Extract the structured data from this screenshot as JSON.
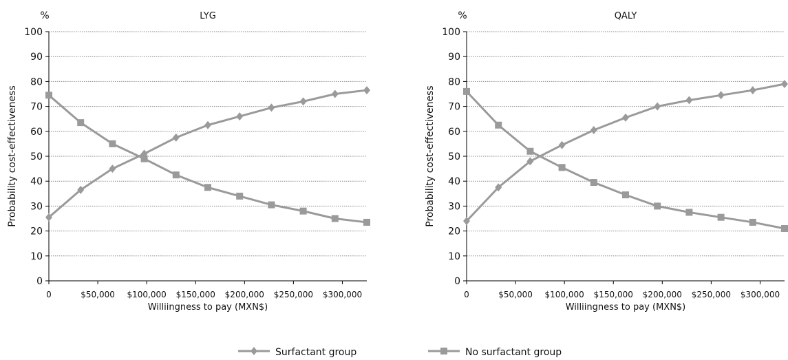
{
  "legend": {
    "items": [
      {
        "label": "Surfactant group",
        "marker": "diamond"
      },
      {
        "label": "No surfactant group",
        "marker": "square"
      }
    ]
  },
  "colors": {
    "series": "#9a9a9a",
    "grid": "#888888",
    "axis": "#000000"
  },
  "chart_data": [
    {
      "type": "line",
      "title": "LYG",
      "unit_label": "%",
      "xlabel": "Williingness to pay (MXN$)",
      "ylabel": "Probability cost-effectiveness",
      "ylim": [
        0,
        100
      ],
      "yticks": [
        0,
        10,
        20,
        30,
        40,
        50,
        60,
        70,
        80,
        90,
        100
      ],
      "xlim": [
        0,
        325000
      ],
      "xticks": [
        0,
        50000,
        100000,
        150000,
        200000,
        250000,
        300000
      ],
      "xtick_labels": [
        "0",
        "$50,000",
        "$100,000",
        "$150,000",
        "$200,000",
        "$250,000",
        "$300,000"
      ],
      "x": [
        0,
        32500,
        65000,
        97500,
        130000,
        162500,
        195000,
        227500,
        260000,
        292500,
        325000
      ],
      "grid": "horizontal dotted",
      "series": [
        {
          "name": "Surfactant group",
          "marker": "diamond",
          "values": [
            25.5,
            36.5,
            45,
            51,
            57.5,
            62.5,
            66,
            69.5,
            72,
            75,
            76.5
          ]
        },
        {
          "name": "No surfactant group",
          "marker": "square",
          "values": [
            74.5,
            63.5,
            55,
            49,
            42.5,
            37.5,
            34,
            30.5,
            28,
            25,
            23.5
          ]
        }
      ]
    },
    {
      "type": "line",
      "title": "QALY",
      "unit_label": "%",
      "xlabel": "Williingness to pay (MXN$)",
      "ylabel": "Probability cost-effectiveness",
      "ylim": [
        0,
        100
      ],
      "yticks": [
        0,
        10,
        20,
        30,
        40,
        50,
        60,
        70,
        80,
        90,
        100
      ],
      "xlim": [
        0,
        325000
      ],
      "xticks": [
        0,
        50000,
        100000,
        150000,
        200000,
        250000,
        300000
      ],
      "xtick_labels": [
        "0",
        "$50,000",
        "$100,000",
        "$150,000",
        "$200,000",
        "$250,000",
        "$300,000"
      ],
      "x": [
        0,
        32500,
        65000,
        97500,
        130000,
        162500,
        195000,
        227500,
        260000,
        292500,
        325000
      ],
      "grid": "horizontal dotted",
      "series": [
        {
          "name": "Surfactant group",
          "marker": "diamond",
          "values": [
            24,
            37.5,
            48,
            54.5,
            60.5,
            65.5,
            70,
            72.5,
            74.5,
            76.5,
            79
          ]
        },
        {
          "name": "No surfactant group",
          "marker": "square",
          "values": [
            76,
            62.5,
            52,
            45.5,
            39.5,
            34.5,
            30,
            27.5,
            25.5,
            23.5,
            21
          ]
        }
      ]
    }
  ]
}
